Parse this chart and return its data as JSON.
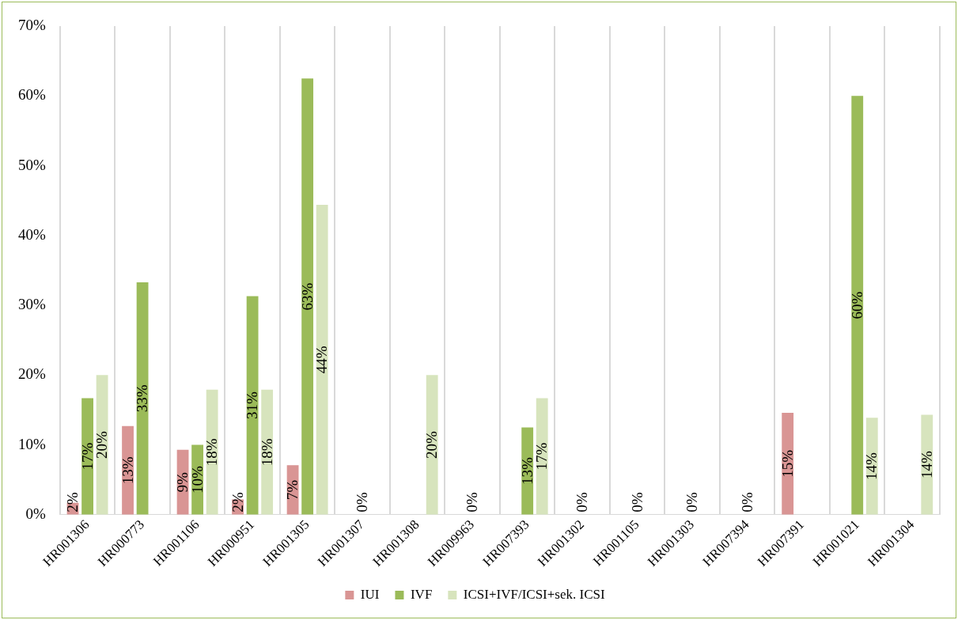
{
  "chart_data": {
    "type": "bar",
    "categories": [
      "HR001306",
      "HR000773",
      "HR001106",
      "HR000951",
      "HR001305",
      "HR001307",
      "HR001308",
      "HR009963",
      "HR007393",
      "HR001302",
      "HR001105",
      "HR001303",
      "HR007394",
      "HR007391",
      "HR001021",
      "HR001304"
    ],
    "series": [
      {
        "name": "IUI",
        "color": "#d99594",
        "values": [
          1.7,
          12.7,
          9.3,
          2.2,
          7.1,
          null,
          null,
          null,
          null,
          null,
          null,
          null,
          null,
          14.6,
          null,
          null
        ],
        "value_labels": [
          "2%",
          "13%",
          "9%",
          "2%",
          "7%",
          null,
          null,
          null,
          null,
          null,
          null,
          null,
          null,
          "15%",
          null,
          null
        ]
      },
      {
        "name": "IVF",
        "color": "#9bbb59",
        "values": [
          16.7,
          33.3,
          10,
          31.3,
          62.5,
          0,
          null,
          0,
          12.5,
          0,
          0,
          0,
          0,
          null,
          60,
          null
        ],
        "value_labels": [
          "17%",
          "33%",
          "10%",
          "31%",
          "63%",
          "0%",
          null,
          "0%",
          "13%",
          "0%",
          "0%",
          "0%",
          "0%",
          null,
          "60%",
          null
        ]
      },
      {
        "name": "ICSI+IVF/ICSI+sek. ICSI",
        "color": "#d7e4bd",
        "values": [
          20,
          null,
          17.9,
          17.9,
          44.4,
          null,
          20,
          null,
          16.7,
          null,
          null,
          null,
          null,
          null,
          13.9,
          14.3
        ],
        "value_labels": [
          "20%",
          null,
          "18%",
          "18%",
          "44%",
          null,
          "20%",
          null,
          "17%",
          null,
          null,
          null,
          null,
          null,
          "14%",
          "14%"
        ]
      }
    ],
    "ylim": [
      0,
      70
    ],
    "yticks": [
      {
        "value": 0,
        "label": "0%"
      },
      {
        "value": 10,
        "label": "10%"
      },
      {
        "value": 20,
        "label": "20%"
      },
      {
        "value": 30,
        "label": "30%"
      },
      {
        "value": 40,
        "label": "40%"
      },
      {
        "value": 50,
        "label": "50%"
      },
      {
        "value": 60,
        "label": "60%"
      },
      {
        "value": 70,
        "label": "70%"
      }
    ],
    "grid": "x",
    "legend": "bottom"
  }
}
